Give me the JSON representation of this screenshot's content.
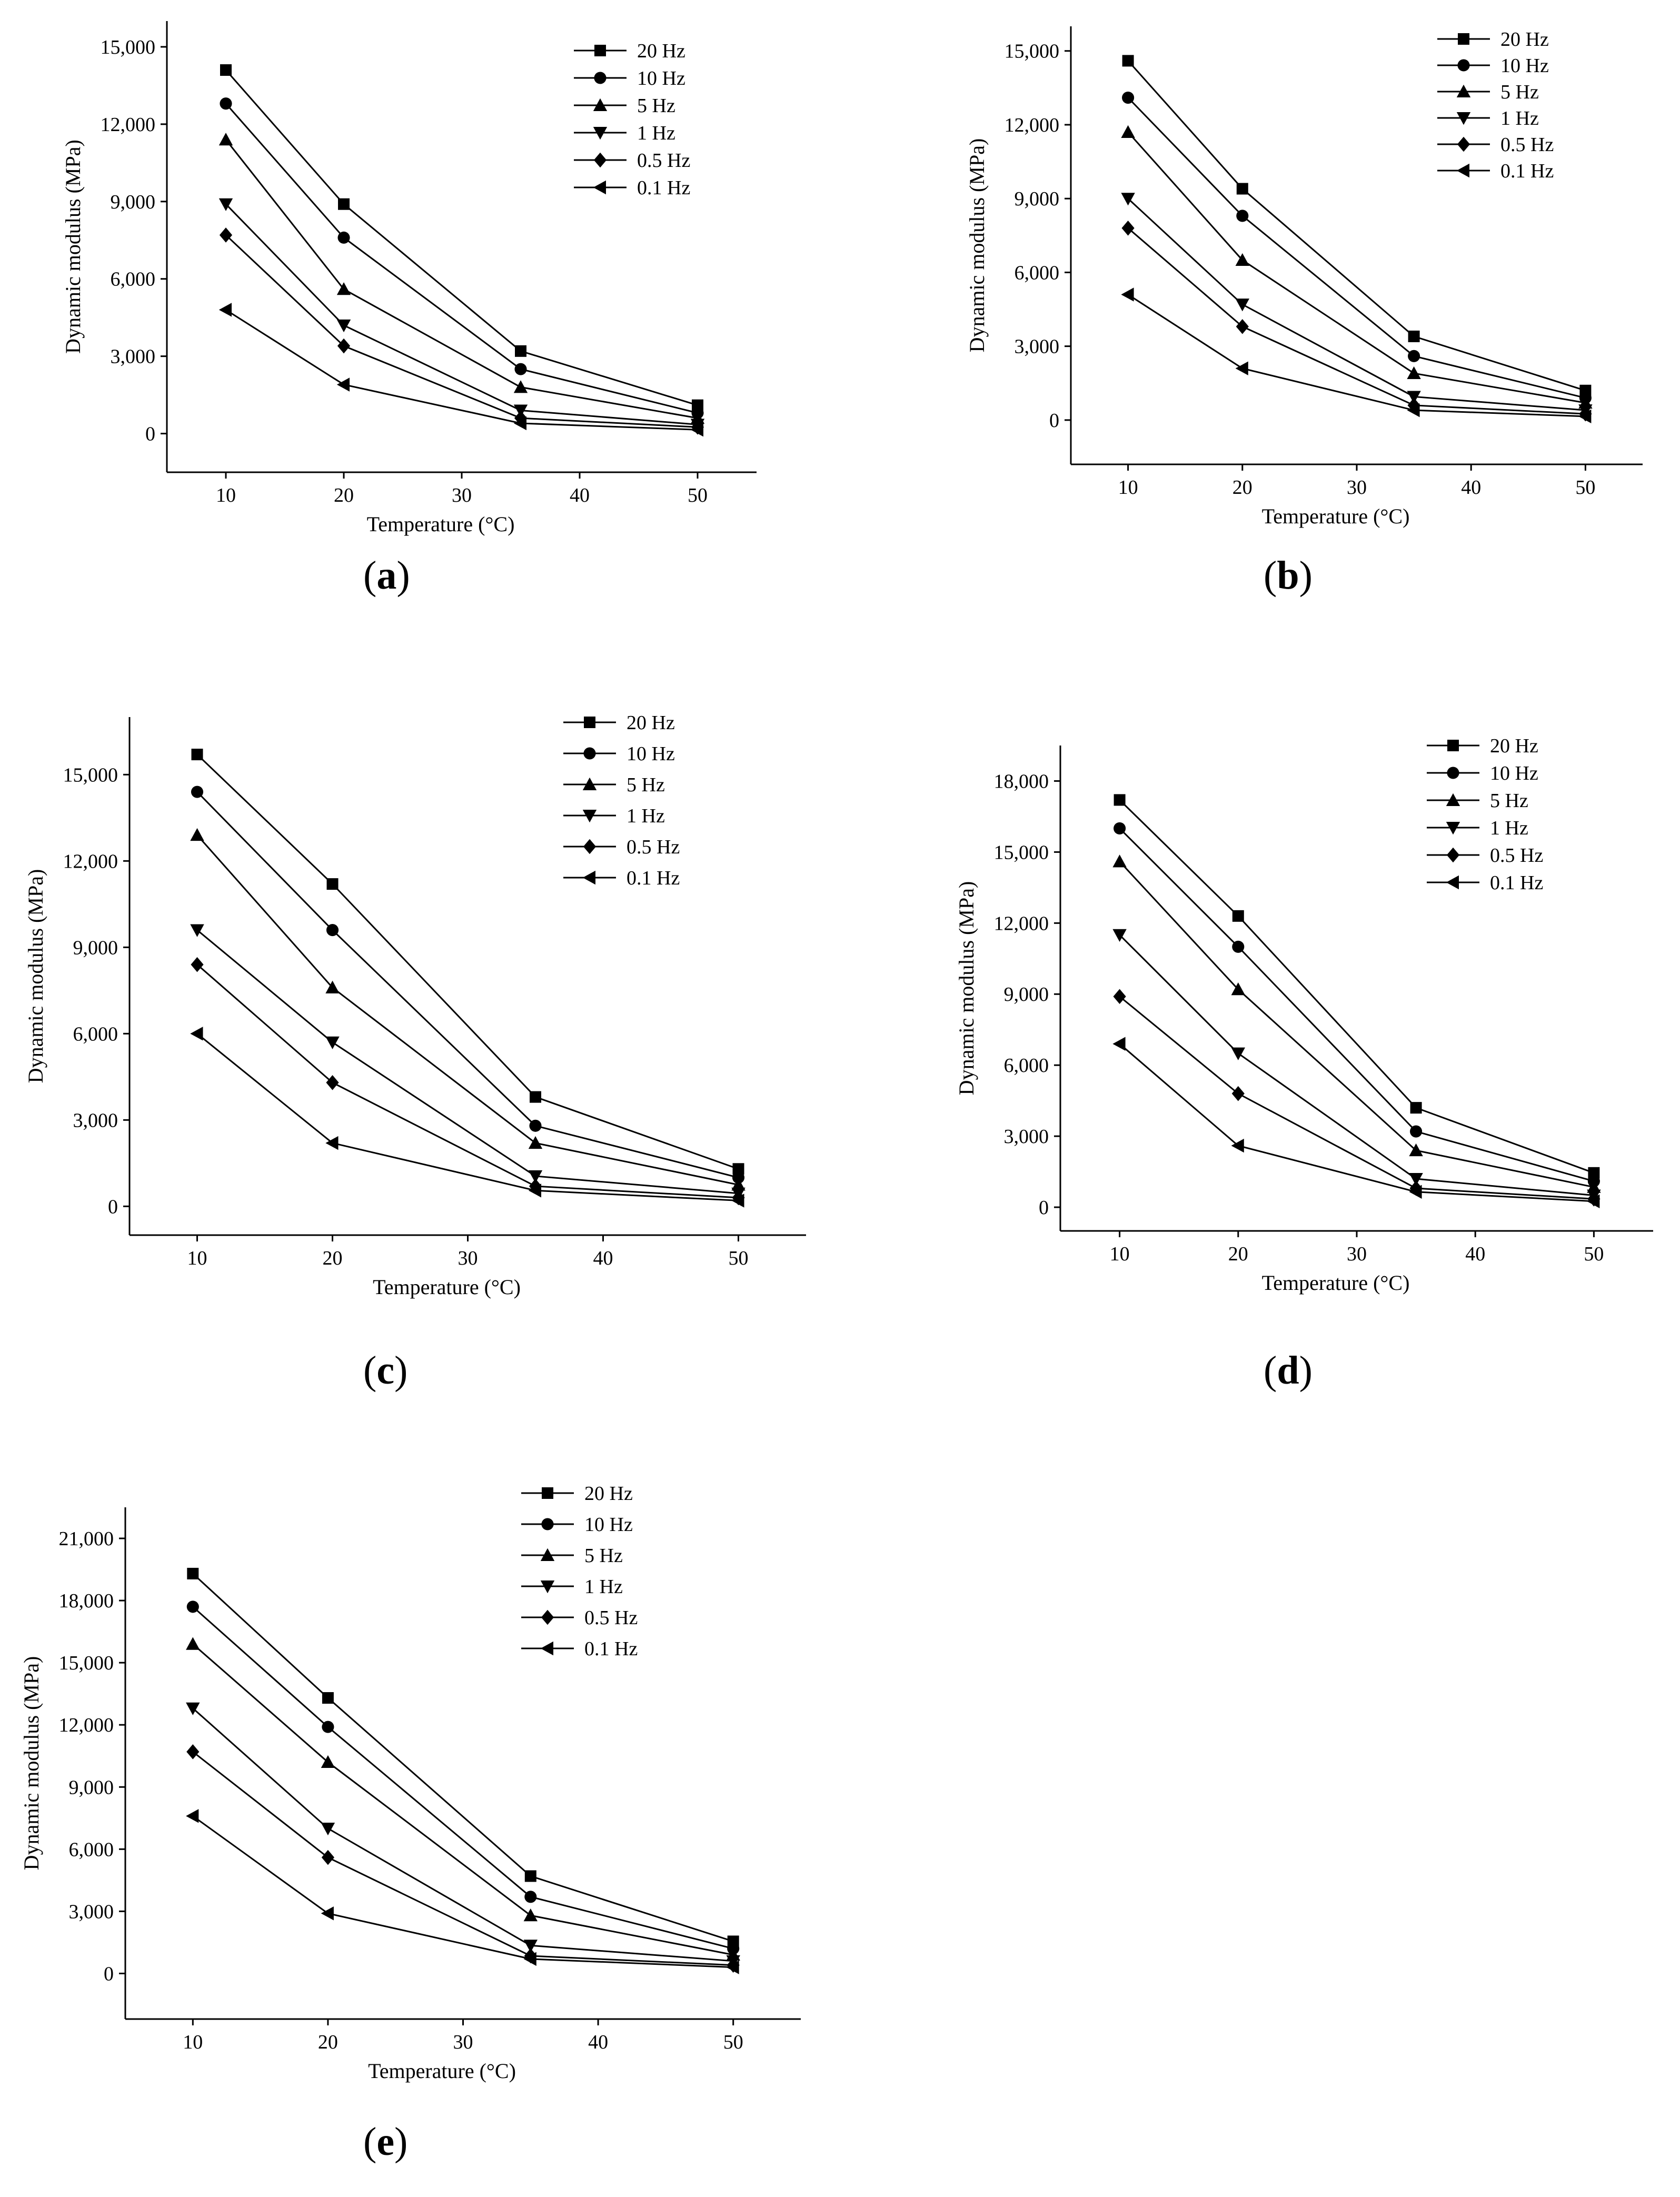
{
  "chart_data": [
    {
      "type": "line",
      "panel_label": "a",
      "title": "",
      "xlabel": "Temperature (°C)",
      "ylabel": "Dynamic modulus (MPa)",
      "x": [
        10,
        20,
        35,
        50
      ],
      "xticks": [
        "10",
        "20",
        "30",
        "40",
        "50"
      ],
      "yticks": [
        "0",
        "3,000",
        "6,000",
        "9,000",
        "12,000",
        "15,000"
      ],
      "xlim": [
        5,
        55
      ],
      "ylim": [
        -1500,
        16000
      ],
      "legend_position": "top-right",
      "series": [
        {
          "name": "20 Hz",
          "marker": "square",
          "values": [
            14100,
            8900,
            3200,
            1100
          ]
        },
        {
          "name": "10 Hz",
          "marker": "circle",
          "values": [
            12800,
            7600,
            2500,
            800
          ]
        },
        {
          "name": "5 Hz",
          "marker": "triangle-up",
          "values": [
            11400,
            5600,
            1800,
            600
          ]
        },
        {
          "name": "1 Hz",
          "marker": "triangle-down",
          "values": [
            8900,
            4200,
            900,
            350
          ]
        },
        {
          "name": "0.5 Hz",
          "marker": "diamond",
          "values": [
            7700,
            3400,
            600,
            250
          ]
        },
        {
          "name": "0.1 Hz",
          "marker": "triangle-left",
          "values": [
            4800,
            1900,
            400,
            150
          ]
        }
      ]
    },
    {
      "type": "line",
      "panel_label": "b",
      "title": "",
      "xlabel": "Temperature (°C)",
      "ylabel": "Dynamic modulus (MPa)",
      "x": [
        10,
        20,
        35,
        50
      ],
      "xticks": [
        "10",
        "20",
        "30",
        "40",
        "50"
      ],
      "yticks": [
        "0",
        "3,000",
        "6,000",
        "9,000",
        "12,000",
        "15,000"
      ],
      "xlim": [
        5,
        55
      ],
      "ylim": [
        -1800,
        16000
      ],
      "legend_position": "top-right",
      "series": [
        {
          "name": "20 Hz",
          "marker": "square",
          "values": [
            14600,
            9400,
            3400,
            1200
          ]
        },
        {
          "name": "10 Hz",
          "marker": "circle",
          "values": [
            13100,
            8300,
            2600,
            900
          ]
        },
        {
          "name": "5 Hz",
          "marker": "triangle-up",
          "values": [
            11700,
            6500,
            1900,
            700
          ]
        },
        {
          "name": "1 Hz",
          "marker": "triangle-down",
          "values": [
            9000,
            4700,
            950,
            400
          ]
        },
        {
          "name": "0.5 Hz",
          "marker": "diamond",
          "values": [
            7800,
            3800,
            600,
            250
          ]
        },
        {
          "name": "0.1 Hz",
          "marker": "triangle-left",
          "values": [
            5100,
            2100,
            400,
            150
          ]
        }
      ]
    },
    {
      "type": "line",
      "panel_label": "c",
      "title": "",
      "xlabel": "Temperature (°C)",
      "ylabel": "Dynamic modulus (MPa)",
      "x": [
        10,
        20,
        35,
        50
      ],
      "xticks": [
        "10",
        "20",
        "30",
        "40",
        "50"
      ],
      "yticks": [
        "0",
        "3,000",
        "6,000",
        "9,000",
        "12,000",
        "15,000"
      ],
      "xlim": [
        5,
        55
      ],
      "ylim": [
        -1000,
        17000
      ],
      "legend_position": "top-right",
      "series": [
        {
          "name": "20 Hz",
          "marker": "square",
          "values": [
            15700,
            11200,
            3800,
            1300
          ]
        },
        {
          "name": "10 Hz",
          "marker": "circle",
          "values": [
            14400,
            9600,
            2800,
            1000
          ]
        },
        {
          "name": "5 Hz",
          "marker": "triangle-up",
          "values": [
            12900,
            7600,
            2200,
            750
          ]
        },
        {
          "name": "1 Hz",
          "marker": "triangle-down",
          "values": [
            9600,
            5700,
            1050,
            450
          ]
        },
        {
          "name": "0.5 Hz",
          "marker": "diamond",
          "values": [
            8400,
            4300,
            700,
            300
          ]
        },
        {
          "name": "0.1 Hz",
          "marker": "triangle-left",
          "values": [
            6000,
            2200,
            550,
            200
          ]
        }
      ]
    },
    {
      "type": "line",
      "panel_label": "d",
      "title": "",
      "xlabel": "Temperature (°C)",
      "ylabel": "Dynamic modulus (MPa)",
      "x": [
        10,
        20,
        35,
        50
      ],
      "xticks": [
        "10",
        "20",
        "30",
        "40",
        "50"
      ],
      "yticks": [
        "0",
        "3,000",
        "6,000",
        "9,000",
        "12,000",
        "15,000",
        "18,000"
      ],
      "xlim": [
        5,
        55
      ],
      "ylim": [
        -1000,
        19500
      ],
      "legend_position": "top-right",
      "series": [
        {
          "name": "20 Hz",
          "marker": "square",
          "values": [
            17200,
            12300,
            4200,
            1450
          ]
        },
        {
          "name": "10 Hz",
          "marker": "circle",
          "values": [
            16000,
            11000,
            3200,
            1100
          ]
        },
        {
          "name": "5 Hz",
          "marker": "triangle-up",
          "values": [
            14600,
            9200,
            2400,
            850
          ]
        },
        {
          "name": "1 Hz",
          "marker": "triangle-down",
          "values": [
            11500,
            6500,
            1200,
            500
          ]
        },
        {
          "name": "0.5 Hz",
          "marker": "diamond",
          "values": [
            8900,
            4800,
            800,
            350
          ]
        },
        {
          "name": "0.1 Hz",
          "marker": "triangle-left",
          "values": [
            6900,
            2600,
            650,
            250
          ]
        }
      ]
    },
    {
      "type": "line",
      "panel_label": "e",
      "title": "",
      "xlabel": "Temperature (°C)",
      "ylabel": "Dynamic modulus (MPa)",
      "x": [
        10,
        20,
        35,
        50
      ],
      "xticks": [
        "10",
        "20",
        "30",
        "40",
        "50"
      ],
      "yticks": [
        "0",
        "3,000",
        "6,000",
        "9,000",
        "12,000",
        "15,000",
        "18,000",
        "21,000"
      ],
      "xlim": [
        5,
        55
      ],
      "ylim": [
        -2200,
        22500
      ],
      "legend_position": "top-right",
      "series": [
        {
          "name": "20 Hz",
          "marker": "square",
          "values": [
            19300,
            13300,
            4700,
            1550
          ]
        },
        {
          "name": "10 Hz",
          "marker": "circle",
          "values": [
            17700,
            11900,
            3700,
            1200
          ]
        },
        {
          "name": "5 Hz",
          "marker": "triangle-up",
          "values": [
            15900,
            10200,
            2800,
            900
          ]
        },
        {
          "name": "1 Hz",
          "marker": "triangle-down",
          "values": [
            12800,
            7000,
            1350,
            600
          ]
        },
        {
          "name": "0.5 Hz",
          "marker": "diamond",
          "values": [
            10700,
            5600,
            850,
            400
          ]
        },
        {
          "name": "0.1 Hz",
          "marker": "triangle-left",
          "values": [
            7600,
            2900,
            700,
            300
          ]
        }
      ]
    }
  ]
}
